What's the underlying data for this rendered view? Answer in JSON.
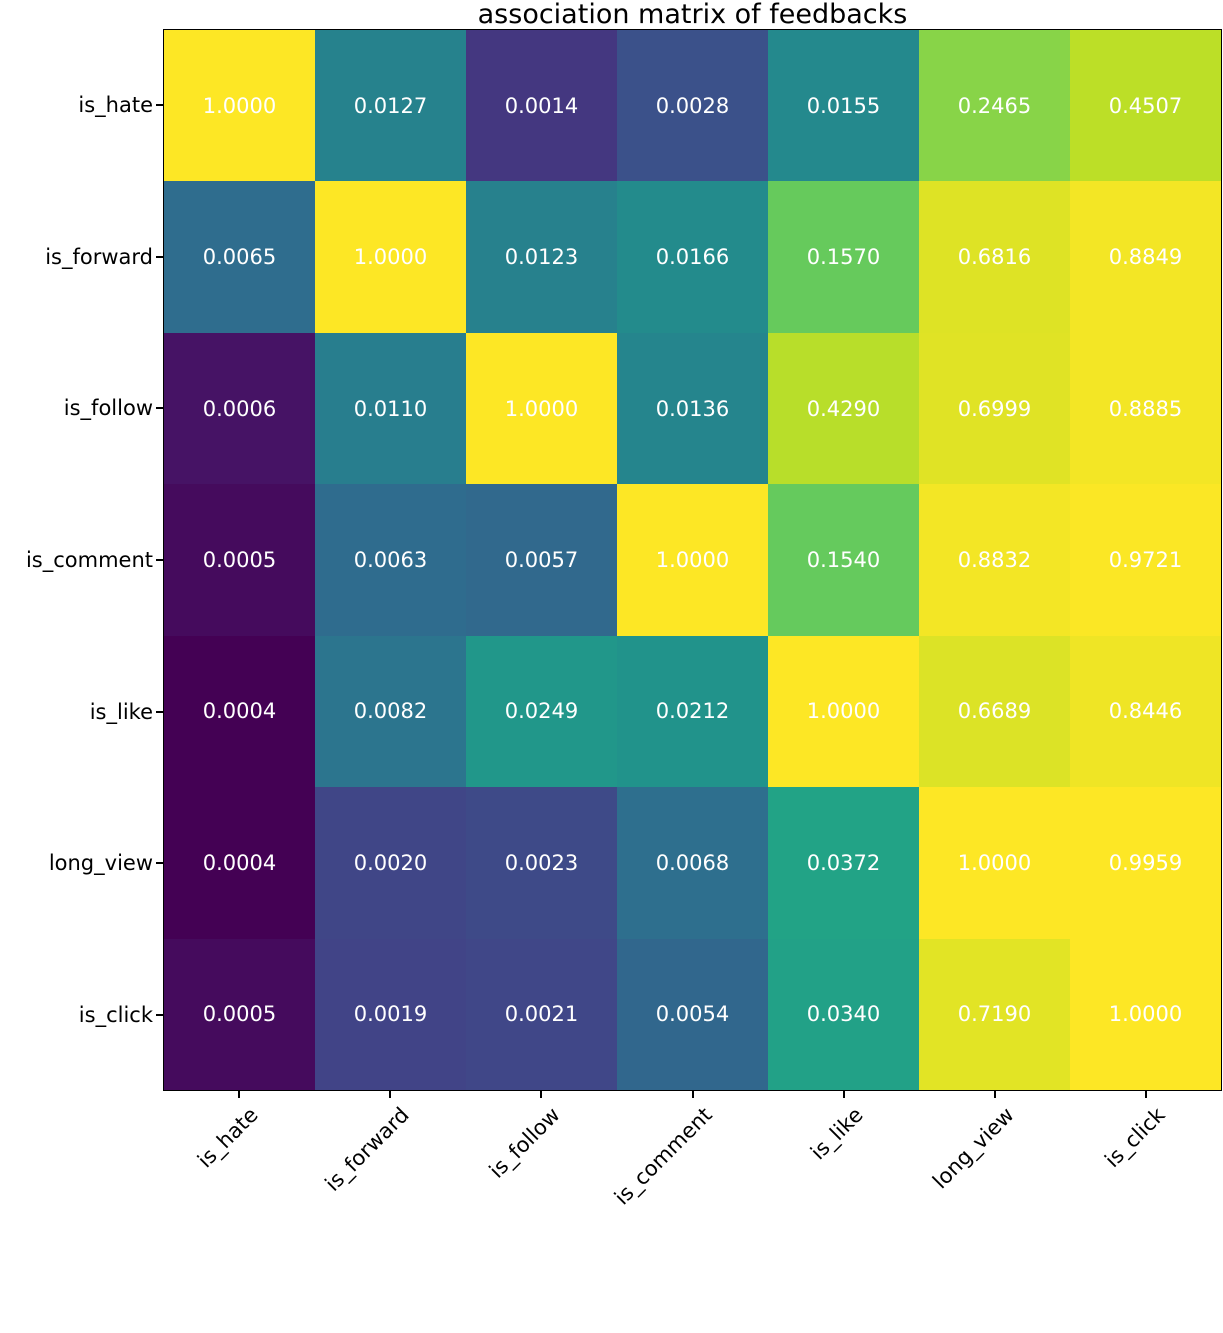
{
  "title": "association matrix of feedbacks",
  "chart_data": {
    "type": "heatmap",
    "title": "association matrix of feedbacks",
    "x_categories": [
      "is_hate",
      "is_forward",
      "is_follow",
      "is_comment",
      "is_like",
      "long_view",
      "is_click"
    ],
    "y_categories": [
      "is_hate",
      "is_forward",
      "is_follow",
      "is_comment",
      "is_like",
      "long_view",
      "is_click"
    ],
    "values": [
      [
        1.0,
        0.0127,
        0.0014,
        0.0028,
        0.0155,
        0.2465,
        0.4507
      ],
      [
        0.0065,
        1.0,
        0.0123,
        0.0166,
        0.157,
        0.6816,
        0.8849
      ],
      [
        0.0006,
        0.011,
        1.0,
        0.0136,
        0.429,
        0.6999,
        0.8885
      ],
      [
        0.0005,
        0.0063,
        0.0057,
        1.0,
        0.154,
        0.8832,
        0.9721
      ],
      [
        0.0004,
        0.0082,
        0.0249,
        0.0212,
        1.0,
        0.6689,
        0.8446
      ],
      [
        0.0004,
        0.002,
        0.0023,
        0.0068,
        0.0372,
        1.0,
        0.9959
      ],
      [
        0.0005,
        0.0019,
        0.0021,
        0.0054,
        0.034,
        0.719,
        1.0
      ]
    ],
    "value_decimals": 4,
    "colormap": "viridis",
    "color_scale": "log10",
    "color_domain": [
      0.0004,
      1.0
    ],
    "viridis_stops": [
      "#440154",
      "#482475",
      "#414487",
      "#355f8d",
      "#2a788e",
      "#21918c",
      "#22a884",
      "#44bf70",
      "#7ad151",
      "#bddf26",
      "#fde725"
    ],
    "annotation_color": "#ffffff",
    "axis_color": "#000000",
    "background": "#ffffff",
    "grid": false,
    "legend": "none",
    "x_tick_rotation_deg": 45
  }
}
